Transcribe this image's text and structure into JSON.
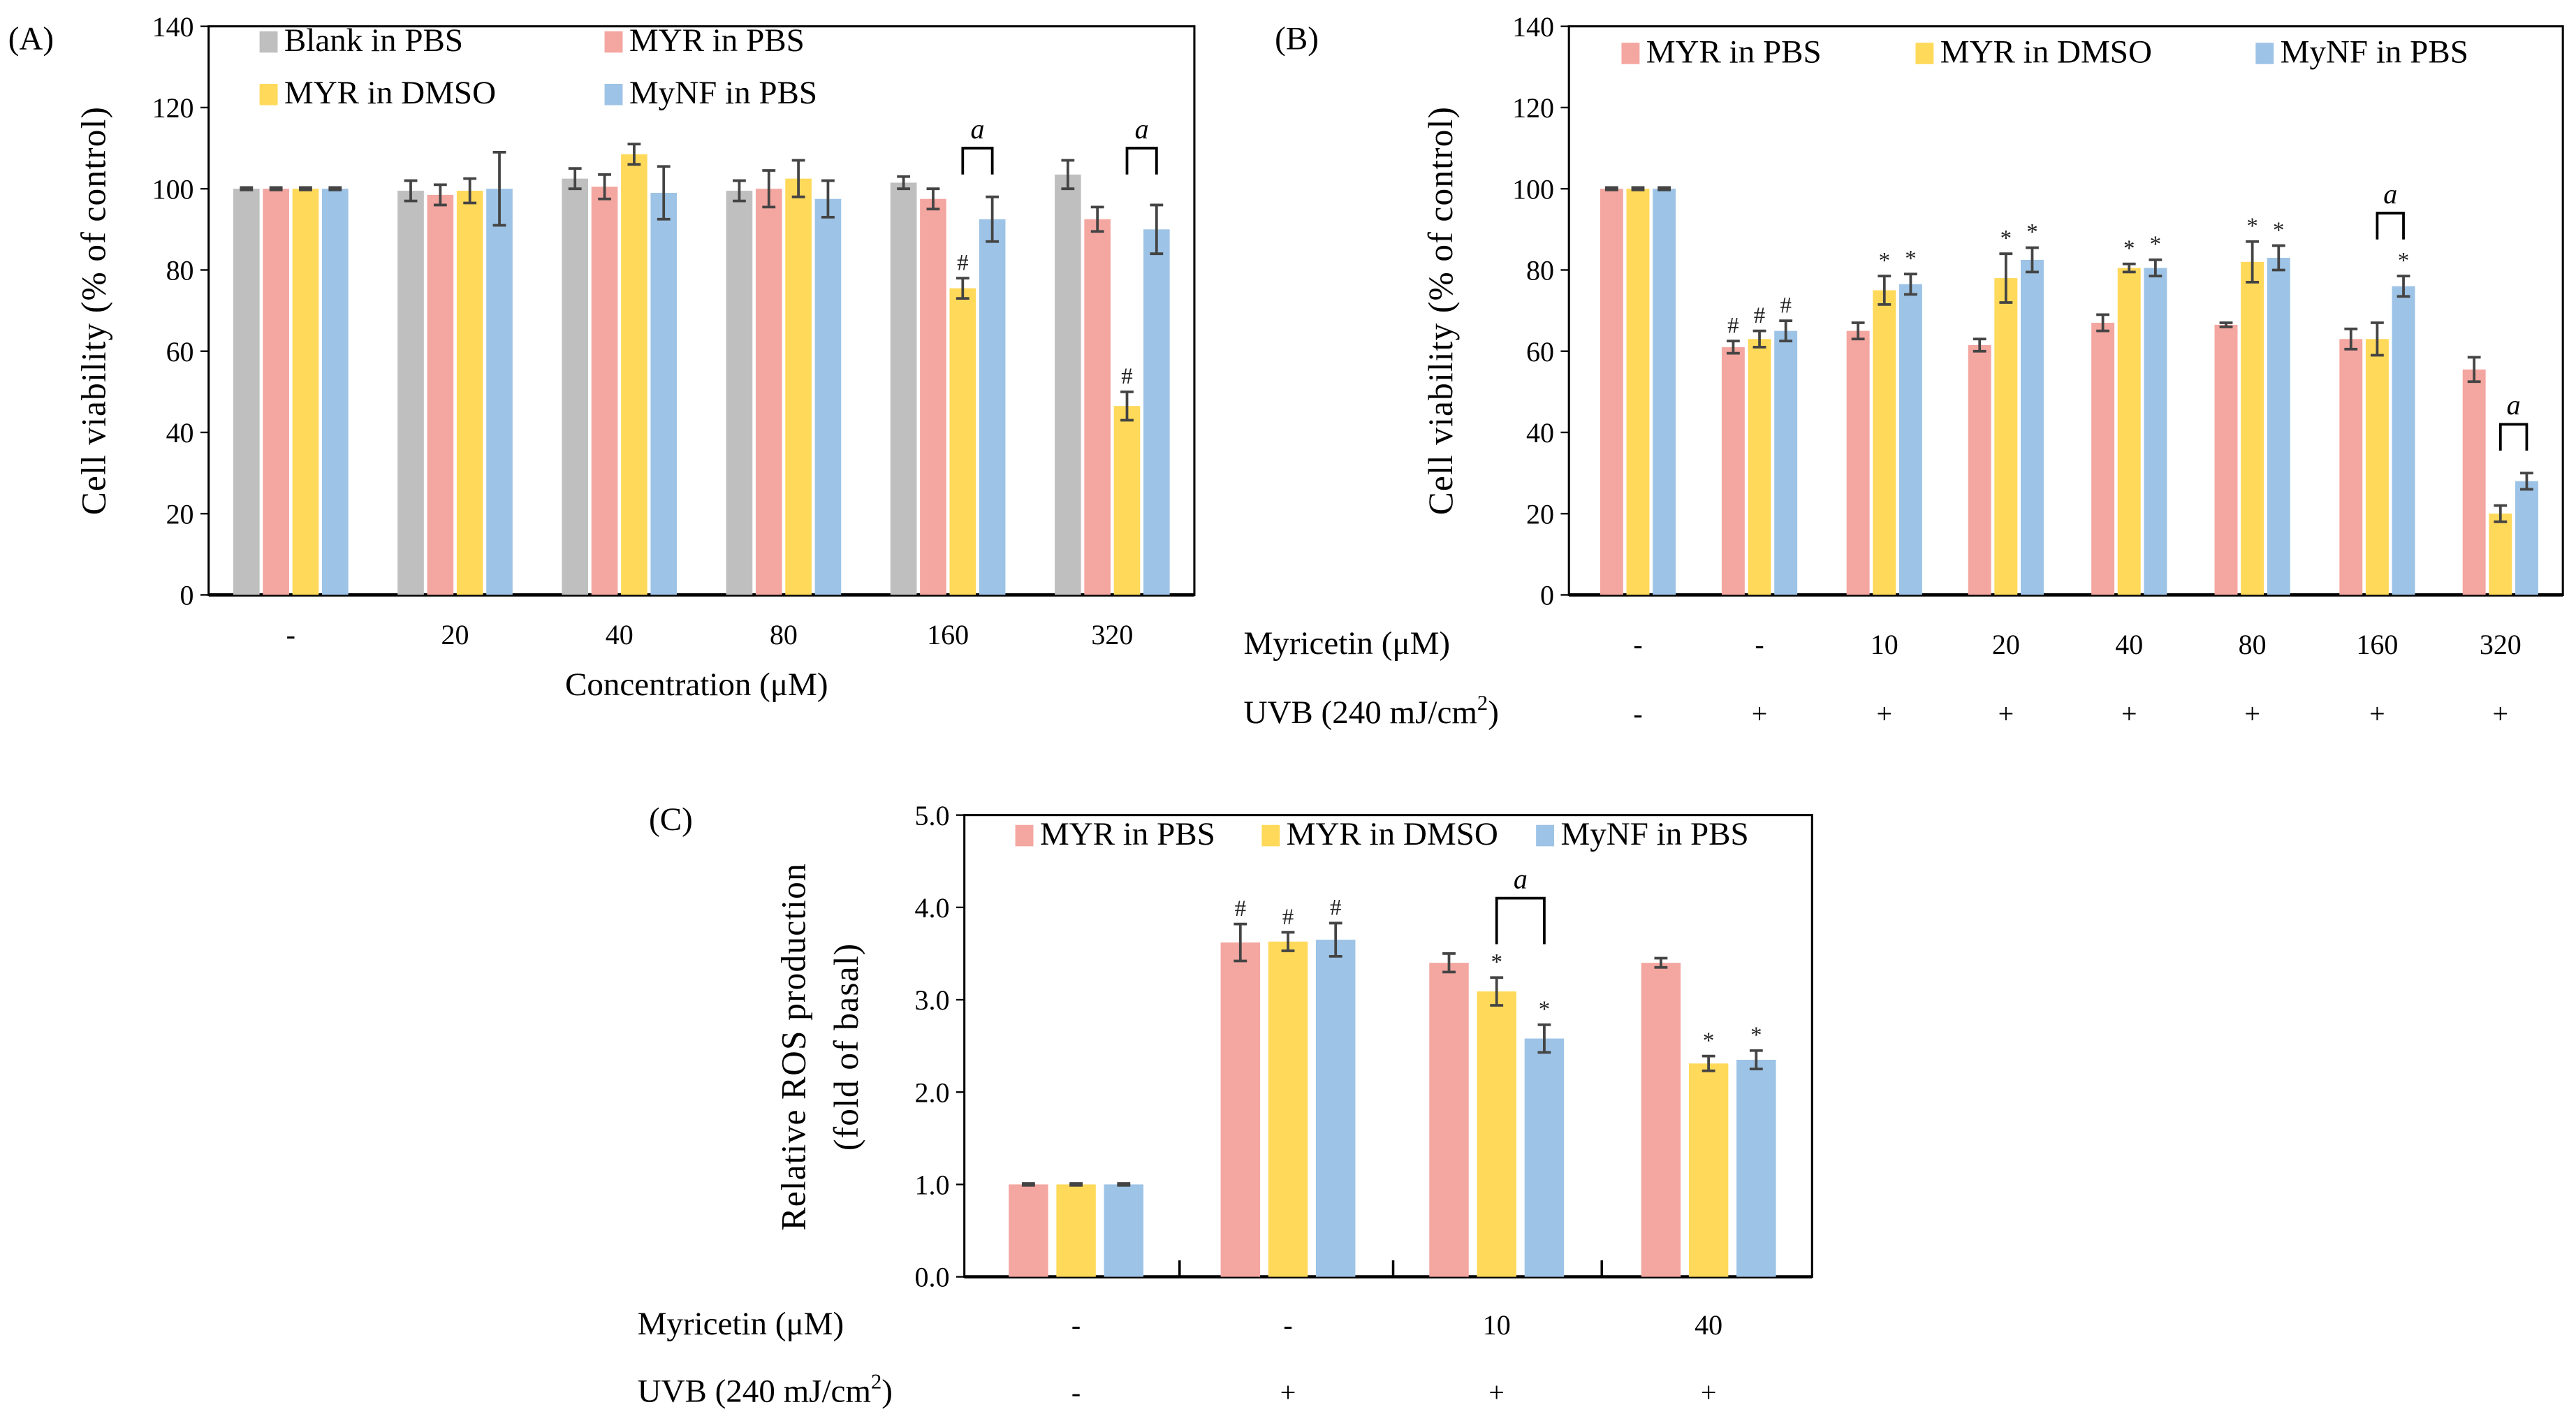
{
  "colors": {
    "blank": "#BFBFBF",
    "pbs": "#F4A6A0",
    "dmso": "#FFD95A",
    "mynf": "#9DC3E6",
    "error": "#444444"
  },
  "chart_data": [
    {
      "id": "A",
      "panel_label": "(A)",
      "type": "bar",
      "ylabel": "Cell viability (% of control)",
      "xlabel": "Concentration (μM)",
      "ylim": [
        0,
        140
      ],
      "yticks": [
        "0",
        "20",
        "40",
        "60",
        "80",
        "100",
        "120",
        "140"
      ],
      "ytick_values": [
        0,
        20,
        40,
        60,
        80,
        100,
        120,
        140
      ],
      "legend_position": "top-left",
      "categories": [
        "-",
        "20",
        "40",
        "80",
        "160",
        "320"
      ],
      "series": [
        {
          "name": "Blank in PBS",
          "color_key": "blank",
          "values": [
            100,
            99.5,
            102.5,
            99.5,
            101.5,
            103.5
          ],
          "errors": [
            0.3,
            2.5,
            2.5,
            2.5,
            1.5,
            3.5
          ]
        },
        {
          "name": "MYR in PBS",
          "color_key": "pbs",
          "values": [
            100,
            98.5,
            100.5,
            100,
            97.5,
            92.5
          ],
          "errors": [
            0.3,
            2.5,
            3,
            4.5,
            2.5,
            3
          ]
        },
        {
          "name": "MYR in DMSO",
          "color_key": "dmso",
          "values": [
            100,
            99.5,
            108.5,
            102.5,
            75.5,
            46.5
          ],
          "errors": [
            0.3,
            3,
            2.5,
            4.5,
            2.5,
            3.5
          ]
        },
        {
          "name": "MyNF in PBS",
          "color_key": "mynf",
          "values": [
            100,
            100,
            99,
            97.5,
            92.5,
            90
          ],
          "errors": [
            0.3,
            9,
            6.5,
            4.5,
            5.5,
            6
          ]
        }
      ],
      "markers": [
        {
          "series": 2,
          "group": 4,
          "symbol": "#"
        },
        {
          "series": 2,
          "group": 5,
          "symbol": "#"
        }
      ],
      "brackets": [
        {
          "group": 4,
          "from": 2,
          "to": 3,
          "label": "a",
          "level": 110
        },
        {
          "group": 5,
          "from": 2,
          "to": 3,
          "label": "a",
          "level": 110
        }
      ]
    },
    {
      "id": "B",
      "panel_label": "(B)",
      "type": "bar",
      "ylabel": "Cell viability (% of control)",
      "ylim": [
        0,
        140
      ],
      "yticks": [
        "0",
        "20",
        "40",
        "60",
        "80",
        "100",
        "120",
        "140"
      ],
      "ytick_values": [
        0,
        20,
        40,
        60,
        80,
        100,
        120,
        140
      ],
      "legend_position": "top",
      "row_labels": [
        {
          "label": "Myricetin (μM)",
          "values": [
            "-",
            "-",
            "10",
            "20",
            "40",
            "80",
            "160",
            "320"
          ]
        },
        {
          "label": "UVB (240 mJ/cm",
          "sup": "2",
          "tail": ")",
          "values": [
            "-",
            "+",
            "+",
            "+",
            "+",
            "+",
            "+",
            "+"
          ]
        }
      ],
      "series": [
        {
          "name": "MYR in PBS",
          "color_key": "pbs",
          "values": [
            100,
            61,
            65,
            61.5,
            67,
            66.5,
            63,
            55.5
          ],
          "errors": [
            0.3,
            1.5,
            2,
            1.5,
            2,
            0.5,
            2.5,
            3
          ]
        },
        {
          "name": "MYR in DMSO",
          "color_key": "dmso",
          "values": [
            100,
            63,
            75,
            78,
            80.5,
            82,
            63,
            20
          ],
          "errors": [
            0.3,
            2,
            3.5,
            6,
            1,
            5,
            4,
            2
          ]
        },
        {
          "name": "MyNF in PBS",
          "color_key": "mynf",
          "values": [
            100,
            65,
            76.5,
            82.5,
            80.5,
            83,
            76,
            28
          ],
          "errors": [
            0.3,
            2.5,
            2.5,
            3,
            2,
            3,
            2.5,
            2
          ]
        }
      ],
      "markers": [
        {
          "series": 0,
          "group": 1,
          "symbol": "#"
        },
        {
          "series": 1,
          "group": 1,
          "symbol": "#"
        },
        {
          "series": 2,
          "group": 1,
          "symbol": "#"
        },
        {
          "series": 1,
          "group": 2,
          "symbol": "*"
        },
        {
          "series": 2,
          "group": 2,
          "symbol": "*"
        },
        {
          "series": 1,
          "group": 3,
          "symbol": "*"
        },
        {
          "series": 2,
          "group": 3,
          "symbol": "*"
        },
        {
          "series": 1,
          "group": 4,
          "symbol": "*"
        },
        {
          "series": 2,
          "group": 4,
          "symbol": "*"
        },
        {
          "series": 1,
          "group": 5,
          "symbol": "*"
        },
        {
          "series": 2,
          "group": 5,
          "symbol": "*"
        },
        {
          "series": 2,
          "group": 6,
          "symbol": "*"
        }
      ],
      "brackets": [
        {
          "group": 6,
          "from": 1,
          "to": 2,
          "label": "a",
          "level": 94
        },
        {
          "group": 7,
          "from": 1,
          "to": 2,
          "label": "a",
          "level": 42
        }
      ]
    },
    {
      "id": "C",
      "panel_label": "(C)",
      "type": "bar",
      "ylabel": "Relative ROS production",
      "ylabel2": "(fold of basal)",
      "ylim": [
        0,
        5
      ],
      "yticks": [
        "0.0",
        "1.0",
        "2.0",
        "3.0",
        "4.0",
        "5.0"
      ],
      "ytick_values": [
        0,
        1,
        2,
        3,
        4,
        5
      ],
      "legend_position": "top",
      "row_labels": [
        {
          "label": "Myricetin (μM)",
          "values": [
            "-",
            "-",
            "10",
            "40"
          ]
        },
        {
          "label": "UVB (240 mJ/cm",
          "sup": "2",
          "tail": ")",
          "values": [
            "-",
            "+",
            "+",
            "+"
          ]
        }
      ],
      "series": [
        {
          "name": "MYR in PBS",
          "color_key": "pbs",
          "values": [
            1,
            3.62,
            3.4,
            3.4
          ],
          "errors": [
            0.01,
            0.2,
            0.1,
            0.05
          ]
        },
        {
          "name": "MYR in DMSO",
          "color_key": "dmso",
          "values": [
            1,
            3.63,
            3.09,
            2.31
          ],
          "errors": [
            0.01,
            0.1,
            0.15,
            0.08
          ]
        },
        {
          "name": "MyNF in PBS",
          "color_key": "mynf",
          "values": [
            1,
            3.65,
            2.58,
            2.35
          ],
          "errors": [
            0.01,
            0.18,
            0.15,
            0.1
          ]
        }
      ],
      "markers": [
        {
          "series": 0,
          "group": 1,
          "symbol": "#"
        },
        {
          "series": 1,
          "group": 1,
          "symbol": "#"
        },
        {
          "series": 2,
          "group": 1,
          "symbol": "#"
        },
        {
          "series": 1,
          "group": 2,
          "symbol": "*"
        },
        {
          "series": 2,
          "group": 2,
          "symbol": "*"
        },
        {
          "series": 1,
          "group": 3,
          "symbol": "*"
        },
        {
          "series": 2,
          "group": 3,
          "symbol": "*"
        }
      ],
      "brackets": [
        {
          "group": 2,
          "from": 1,
          "to": 2,
          "label": "a",
          "level": 4.1
        }
      ]
    }
  ]
}
